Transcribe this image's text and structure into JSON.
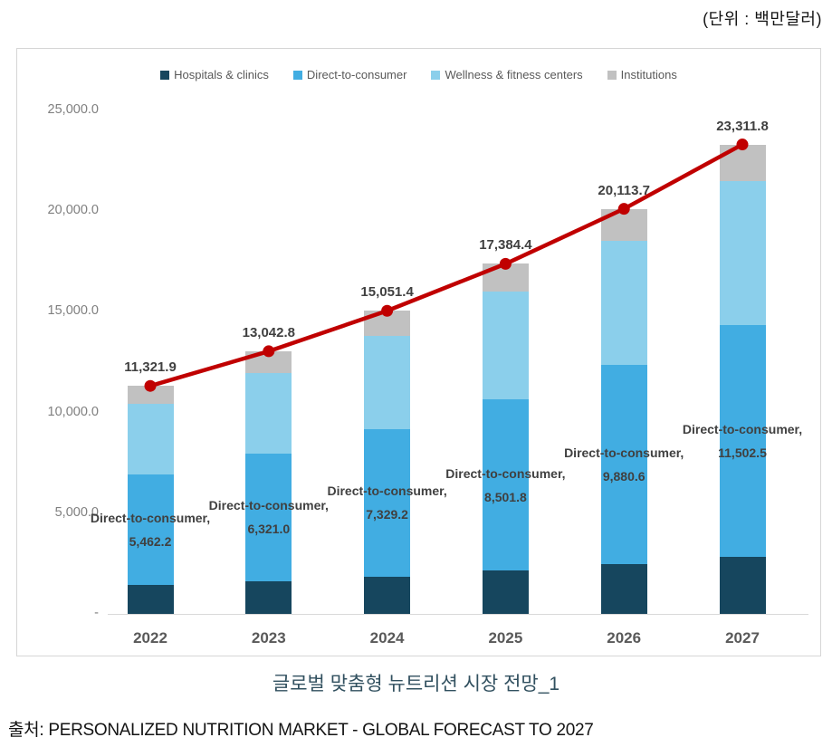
{
  "unit_label": "(단위 : 백만달러)",
  "title": "글로벌 맞춤형 뉴트리션 시장 전망_1",
  "source": "출처: PERSONALIZED NUTRITION MARKET - GLOBAL FORECAST TO 2027",
  "chart_data": {
    "type": "bar",
    "subtype": "stacked-bar-with-total-line",
    "title": "글로벌 맞춤형 뉴트리션 시장 전망_1",
    "xlabel": "",
    "ylabel": "",
    "grid": false,
    "legend_position": "top",
    "categories": [
      "2022",
      "2023",
      "2024",
      "2025",
      "2026",
      "2027"
    ],
    "series": [
      {
        "name": "Hospitals & clinics",
        "color": "#16465e",
        "values": [
          1445,
          1635,
          1845,
          2150,
          2490,
          2835
        ]
      },
      {
        "name": "Direct-to-consumer",
        "color": "#41ade2",
        "values": [
          5462.2,
          6321.0,
          7329.2,
          8501.8,
          9880.6,
          11502.5
        ]
      },
      {
        "name": "Wellness & fitness centers",
        "color": "#8bcfeb",
        "values": [
          3530,
          3990,
          4650,
          5340,
          6145,
          7140
        ]
      },
      {
        "name": "Institutions",
        "color": "#c1c1c1",
        "values": [
          884.7,
          1096.8,
          1227.2,
          1392.6,
          1598.1,
          1834.3
        ]
      }
    ],
    "line_series": {
      "name": "Total",
      "color": "#c00000",
      "values": [
        11321.9,
        13042.8,
        15051.4,
        17384.4,
        20113.7,
        23311.8
      ],
      "labels": [
        "11,321.9",
        "13,042.8",
        "15,051.4",
        "17,384.4",
        "20,113.7",
        "23,311.8"
      ]
    },
    "bar_labels": {
      "series": "Direct-to-consumer",
      "prefix": "Direct-to-consumer,",
      "values": [
        "5,462.2",
        "6,321.0",
        "7,329.2",
        "8,501.8",
        "9,880.6",
        "11,502.5"
      ]
    },
    "y_axis": {
      "min": 0,
      "max": 25000,
      "tick_interval": 5000,
      "ticks": [
        {
          "label": "25,000.0",
          "value": 25000
        },
        {
          "label": "20,000.0",
          "value": 20000
        },
        {
          "label": "15,000.0",
          "value": 15000
        },
        {
          "label": "10,000.0",
          "value": 10000
        },
        {
          "label": "5,000.0",
          "value": 5000
        },
        {
          "label": "-",
          "value": 0
        }
      ]
    }
  }
}
